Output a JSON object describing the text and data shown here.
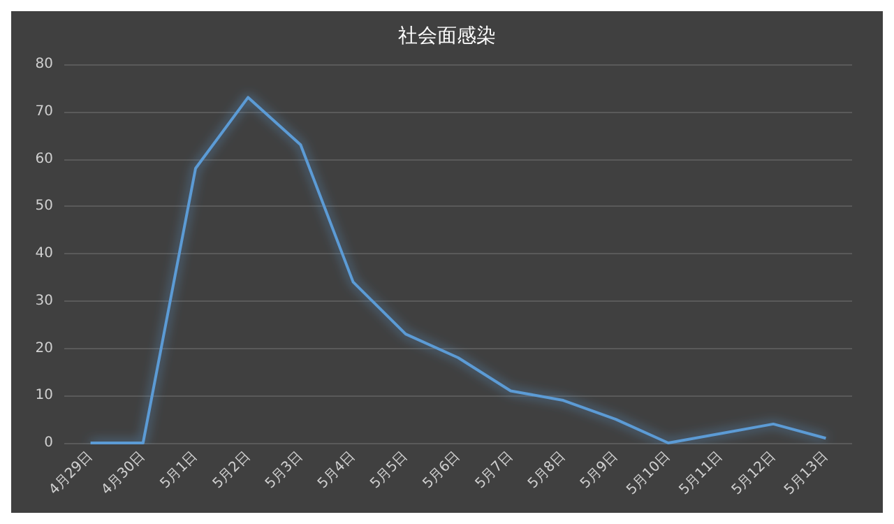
{
  "chart_data": {
    "type": "line",
    "title": "社会面感染",
    "categories": [
      "4月29日",
      "4月30日",
      "5月1日",
      "5月2日",
      "5月3日",
      "5月4日",
      "5月5日",
      "5月6日",
      "5月7日",
      "5月8日",
      "5月9日",
      "5月10日",
      "5月11日",
      "5月12日",
      "5月13日"
    ],
    "series": [
      {
        "color": "#5b9bd5",
        "values": [
          0,
          0,
          58,
          73,
          63,
          34,
          23,
          18,
          11,
          9,
          5,
          0,
          2,
          4,
          1
        ]
      }
    ],
    "ylim": [
      0,
      80
    ],
    "yticks": [
      0,
      10,
      20,
      30,
      40,
      50,
      60,
      70,
      80
    ],
    "grid": "y",
    "marker": "none",
    "line_style": "solid"
  }
}
